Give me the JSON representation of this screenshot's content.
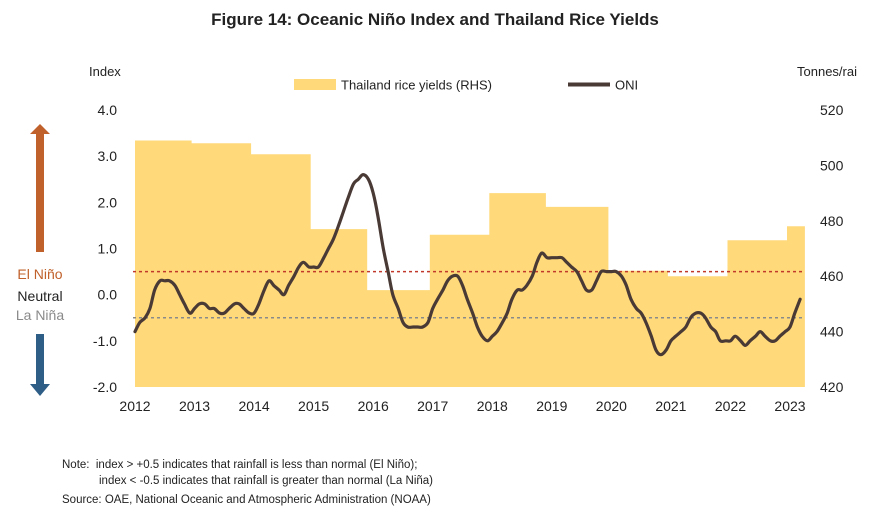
{
  "title": "Figure 14: Oceanic Niño Index and Thailand  Rice Yields",
  "left_axis_title": "Index",
  "right_axis_title": "Tonnes/rai",
  "side_labels": {
    "el_nino": "El Niño",
    "neutral": "Neutral",
    "la_nina": "La Niña"
  },
  "colors": {
    "area": "#FFD97A",
    "oni": "#4A3A36",
    "el_nino": "#C0612B",
    "la_nina": "#2E5E86",
    "threshold_red": "#C0392B",
    "threshold_grey": "#8A8A8A"
  },
  "notes": {
    "line1": "Note:  index > +0.5 indicates that rainfall is less than normal (El Niño);",
    "line2": "index < -0.5 indicates that rainfall is greater than normal (La Niña)",
    "source": "Source: OAE, National Oceanic and Atmospheric Administration (NOAA)"
  },
  "chart_data": {
    "type": "line",
    "legend_placement": "top",
    "x_ticks": [
      "2012",
      "2013",
      "2014",
      "2015",
      "2016",
      "2017",
      "2018",
      "2019",
      "2020",
      "2021",
      "2022",
      "2023"
    ],
    "xlim": [
      2012,
      2023.25
    ],
    "left_ylim": [
      -2.0,
      4.0
    ],
    "left_yticks": [
      "-2.0",
      "-1.0",
      "0.0",
      "1.0",
      "2.0",
      "3.0",
      "4.0"
    ],
    "right_ylim": [
      420,
      520
    ],
    "right_yticks": [
      "420",
      "440",
      "460",
      "480",
      "500",
      "520"
    ],
    "thresholds": [
      0.5,
      -0.5
    ],
    "series": [
      {
        "name": "Thailand rice yields (RHS)",
        "type": "area",
        "axis": "right",
        "x": [
          2012.0,
          2012.95,
          2012.95,
          2013.95,
          2013.95,
          2014.95,
          2014.95,
          2015.9,
          2015.9,
          2016.95,
          2016.95,
          2017.95,
          2017.95,
          2018.9,
          2018.9,
          2019.95,
          2019.95,
          2020.95,
          2020.95,
          2021.95,
          2021.95,
          2022.95,
          2022.95,
          2023.25
        ],
        "values": [
          509,
          509,
          508,
          508,
          504,
          504,
          477,
          477,
          455,
          455,
          475,
          475,
          490,
          490,
          485,
          485,
          462,
          462,
          460,
          460,
          473,
          473,
          478,
          478
        ]
      },
      {
        "name": "ONI",
        "type": "line",
        "axis": "left",
        "x": [
          2012.0,
          2012.08,
          2012.17,
          2012.25,
          2012.33,
          2012.42,
          2012.5,
          2012.58,
          2012.67,
          2012.75,
          2012.83,
          2012.92,
          2013.0,
          2013.08,
          2013.17,
          2013.25,
          2013.33,
          2013.42,
          2013.5,
          2013.58,
          2013.67,
          2013.75,
          2013.83,
          2013.92,
          2014.0,
          2014.08,
          2014.17,
          2014.25,
          2014.33,
          2014.42,
          2014.5,
          2014.58,
          2014.67,
          2014.75,
          2014.83,
          2014.92,
          2015.0,
          2015.08,
          2015.17,
          2015.25,
          2015.33,
          2015.42,
          2015.5,
          2015.58,
          2015.67,
          2015.75,
          2015.83,
          2015.92,
          2016.0,
          2016.08,
          2016.17,
          2016.25,
          2016.33,
          2016.42,
          2016.5,
          2016.58,
          2016.67,
          2016.75,
          2016.83,
          2016.92,
          2017.0,
          2017.08,
          2017.17,
          2017.25,
          2017.33,
          2017.42,
          2017.5,
          2017.58,
          2017.67,
          2017.75,
          2017.83,
          2017.92,
          2018.0,
          2018.08,
          2018.17,
          2018.25,
          2018.33,
          2018.42,
          2018.5,
          2018.58,
          2018.67,
          2018.75,
          2018.83,
          2018.92,
          2019.0,
          2019.08,
          2019.17,
          2019.25,
          2019.33,
          2019.42,
          2019.5,
          2019.58,
          2019.67,
          2019.75,
          2019.83,
          2019.92,
          2020.0,
          2020.08,
          2020.17,
          2020.25,
          2020.33,
          2020.42,
          2020.5,
          2020.58,
          2020.67,
          2020.75,
          2020.83,
          2020.92,
          2021.0,
          2021.08,
          2021.17,
          2021.25,
          2021.33,
          2021.42,
          2021.5,
          2021.58,
          2021.67,
          2021.75,
          2021.83,
          2021.92,
          2022.0,
          2022.08,
          2022.17,
          2022.25,
          2022.33,
          2022.42,
          2022.5,
          2022.58,
          2022.67,
          2022.75,
          2022.83,
          2022.92,
          2023.0,
          2023.08,
          2023.17
        ],
        "values": [
          -0.8,
          -0.6,
          -0.5,
          -0.3,
          0.1,
          0.3,
          0.3,
          0.3,
          0.2,
          0.0,
          -0.2,
          -0.4,
          -0.3,
          -0.2,
          -0.2,
          -0.3,
          -0.3,
          -0.4,
          -0.4,
          -0.3,
          -0.2,
          -0.2,
          -0.3,
          -0.4,
          -0.4,
          -0.2,
          0.1,
          0.3,
          0.2,
          0.1,
          0.0,
          0.2,
          0.4,
          0.6,
          0.7,
          0.6,
          0.6,
          0.6,
          0.8,
          1.0,
          1.2,
          1.5,
          1.8,
          2.1,
          2.4,
          2.5,
          2.6,
          2.5,
          2.2,
          1.7,
          1.0,
          0.5,
          0.0,
          -0.3,
          -0.6,
          -0.7,
          -0.7,
          -0.7,
          -0.7,
          -0.6,
          -0.3,
          -0.1,
          0.1,
          0.3,
          0.4,
          0.4,
          0.2,
          -0.1,
          -0.4,
          -0.7,
          -0.9,
          -1.0,
          -0.9,
          -0.8,
          -0.6,
          -0.4,
          -0.1,
          0.1,
          0.1,
          0.2,
          0.4,
          0.7,
          0.9,
          0.8,
          0.8,
          0.8,
          0.8,
          0.7,
          0.6,
          0.5,
          0.3,
          0.1,
          0.1,
          0.3,
          0.5,
          0.5,
          0.5,
          0.5,
          0.4,
          0.2,
          -0.1,
          -0.3,
          -0.4,
          -0.6,
          -0.9,
          -1.2,
          -1.3,
          -1.2,
          -1.0,
          -0.9,
          -0.8,
          -0.7,
          -0.5,
          -0.4,
          -0.4,
          -0.5,
          -0.7,
          -0.8,
          -1.0,
          -1.0,
          -1.0,
          -0.9,
          -1.0,
          -1.1,
          -1.0,
          -0.9,
          -0.8,
          -0.9,
          -1.0,
          -1.0,
          -0.9,
          -0.8,
          -0.7,
          -0.4,
          -0.1
        ]
      }
    ]
  }
}
